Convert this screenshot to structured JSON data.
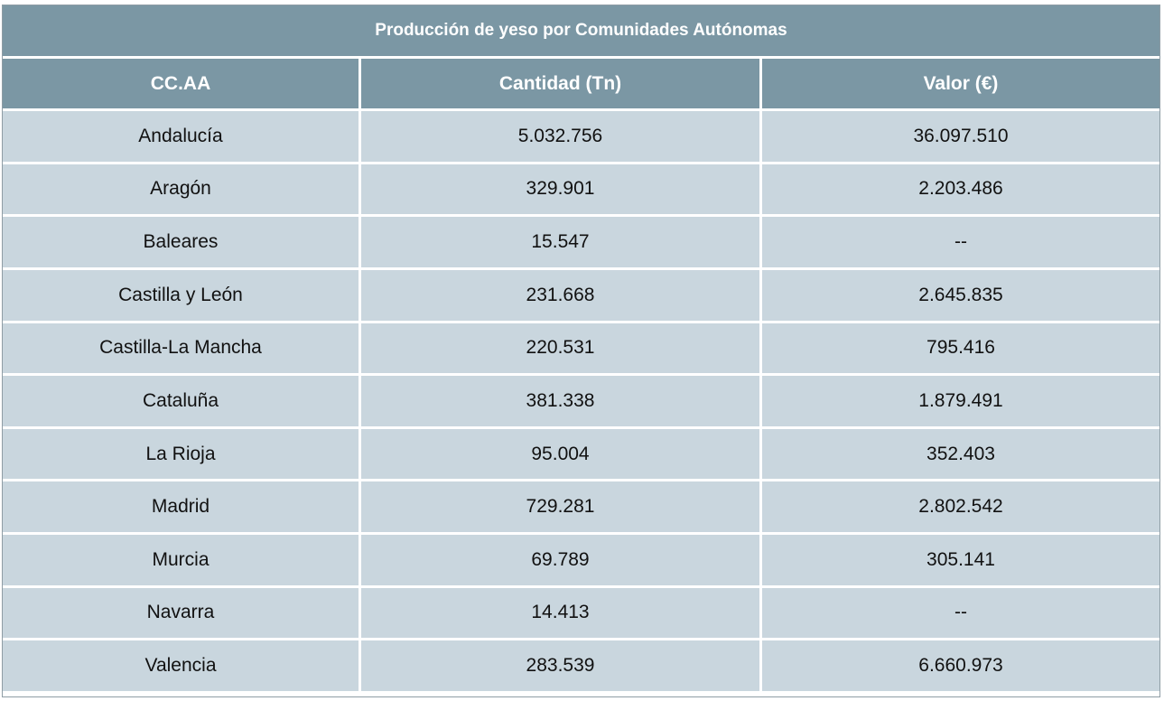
{
  "table": {
    "title": "Producción de yeso por Comunidades Autónomas",
    "headers": [
      "CC.AA",
      "Cantidad (Tn)",
      "Valor (€)"
    ],
    "rows": [
      [
        "Andalucía",
        "5.032.756",
        "36.097.510"
      ],
      [
        "Aragón",
        "329.901",
        "2.203.486"
      ],
      [
        "Baleares",
        "15.547",
        "--"
      ],
      [
        "Castilla y León",
        "231.668",
        "2.645.835"
      ],
      [
        "Castilla-La Mancha",
        "220.531",
        "795.416"
      ],
      [
        "Cataluña",
        "381.338",
        "1.879.491"
      ],
      [
        "La Rioja",
        "95.004",
        "352.403"
      ],
      [
        "Madrid",
        "729.281",
        "2.802.542"
      ],
      [
        "Murcia",
        "69.789",
        "305.141"
      ],
      [
        "Navarra",
        "14.413",
        "--"
      ],
      [
        "Valencia",
        "283.539",
        "6.660.973"
      ]
    ]
  },
  "colors": {
    "header_bg": "#7b97a4",
    "cell_bg": "#c9d6de",
    "header_text": "#ffffff",
    "cell_text": "#111111"
  }
}
